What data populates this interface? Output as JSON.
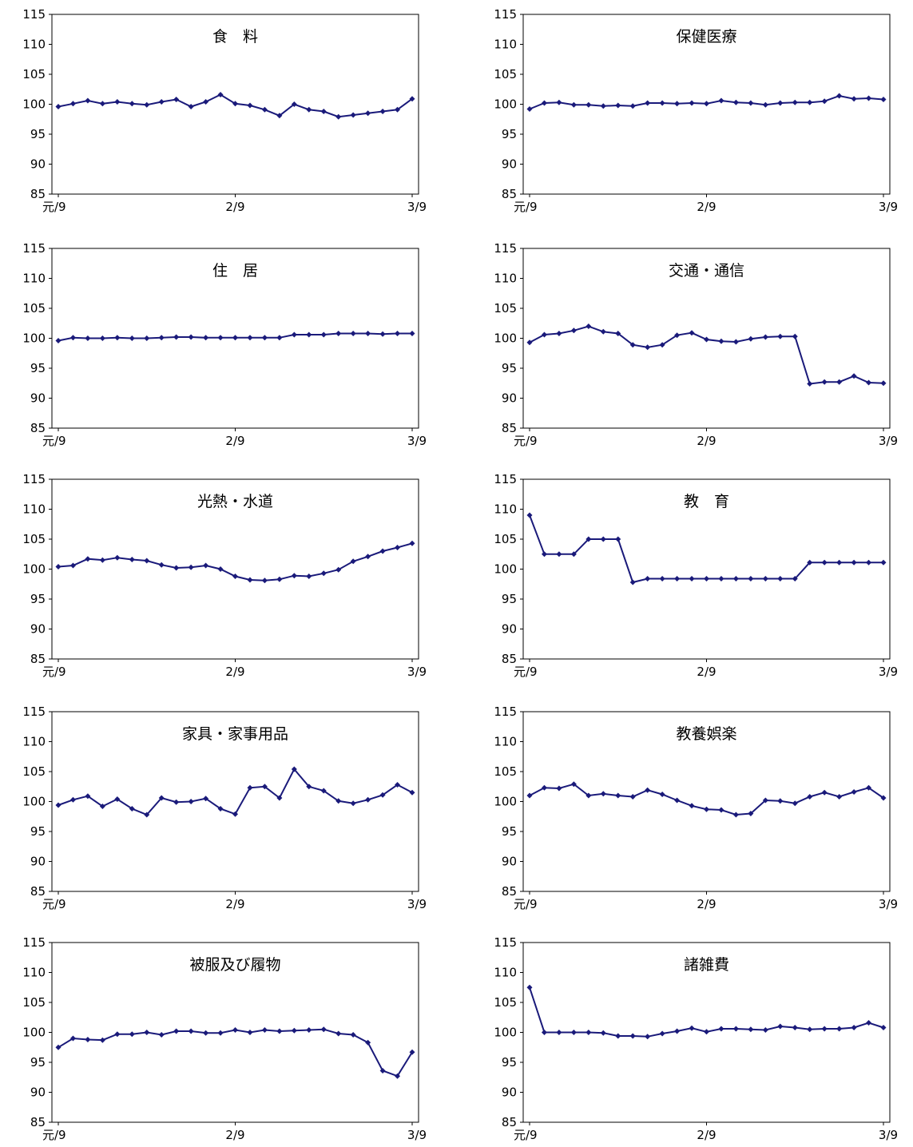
{
  "x_tick_labels": [
    "元/9",
    "2/9",
    "3/9"
  ],
  "y_ticks": [
    85,
    90,
    95,
    100,
    105,
    110,
    115
  ],
  "line_color": "#1a1a7a",
  "chart_data": [
    {
      "type": "line",
      "title": "食　料",
      "ylim": [
        85,
        115
      ],
      "grid": false,
      "values": [
        99.6,
        100.1,
        100.6,
        100.1,
        100.4,
        100.1,
        99.9,
        100.4,
        100.8,
        99.6,
        100.4,
        101.6,
        100.1,
        99.8,
        99.1,
        98.1,
        100.0,
        99.1,
        98.8,
        97.9,
        98.2,
        98.5,
        98.8,
        99.1,
        100.9
      ]
    },
    {
      "type": "line",
      "title": "保健医療",
      "ylim": [
        85,
        115
      ],
      "grid": false,
      "values": [
        99.2,
        100.2,
        100.3,
        99.9,
        99.9,
        99.7,
        99.8,
        99.7,
        100.2,
        100.2,
        100.1,
        100.2,
        100.1,
        100.6,
        100.3,
        100.2,
        99.9,
        100.2,
        100.3,
        100.3,
        100.5,
        101.4,
        100.9,
        101.0,
        100.8
      ]
    },
    {
      "type": "line",
      "title": "住　居",
      "ylim": [
        85,
        115
      ],
      "grid": false,
      "values": [
        99.6,
        100.1,
        100.0,
        100.0,
        100.1,
        100.0,
        100.0,
        100.1,
        100.2,
        100.2,
        100.1,
        100.1,
        100.1,
        100.1,
        100.1,
        100.1,
        100.6,
        100.6,
        100.6,
        100.8,
        100.8,
        100.8,
        100.7,
        100.8,
        100.8
      ]
    },
    {
      "type": "line",
      "title": "交通・通信",
      "ylim": [
        85,
        115
      ],
      "grid": false,
      "values": [
        99.3,
        100.6,
        100.8,
        101.3,
        102.0,
        101.1,
        100.8,
        98.9,
        98.5,
        98.9,
        100.5,
        100.9,
        99.8,
        99.5,
        99.4,
        99.9,
        100.2,
        100.3,
        100.3,
        92.4,
        92.7,
        92.7,
        93.7,
        92.6,
        92.5
      ]
    },
    {
      "type": "line",
      "title": "光熱・水道",
      "ylim": [
        85,
        115
      ],
      "grid": false,
      "values": [
        100.4,
        100.6,
        101.7,
        101.5,
        101.9,
        101.6,
        101.4,
        100.7,
        100.2,
        100.3,
        100.6,
        100.0,
        98.8,
        98.2,
        98.1,
        98.3,
        98.9,
        98.8,
        99.3,
        99.9,
        101.3,
        102.1,
        103.0,
        103.6,
        104.3
      ]
    },
    {
      "type": "line",
      "title": "教　育",
      "ylim": [
        85,
        115
      ],
      "grid": false,
      "values": [
        109.0,
        102.5,
        102.5,
        102.5,
        105.0,
        105.0,
        105.0,
        97.8,
        98.4,
        98.4,
        98.4,
        98.4,
        98.4,
        98.4,
        98.4,
        98.4,
        98.4,
        98.4,
        98.4,
        101.1,
        101.1,
        101.1,
        101.1,
        101.1,
        101.1
      ]
    },
    {
      "type": "line",
      "title": "家具・家事用品",
      "ylim": [
        85,
        115
      ],
      "grid": false,
      "values": [
        99.4,
        100.3,
        100.9,
        99.2,
        100.4,
        98.8,
        97.8,
        100.6,
        99.9,
        100.0,
        100.5,
        98.8,
        97.9,
        102.3,
        102.5,
        100.6,
        105.4,
        102.5,
        101.8,
        100.1,
        99.7,
        100.3,
        101.1,
        102.8,
        101.5
      ]
    },
    {
      "type": "line",
      "title": "教養娯楽",
      "ylim": [
        85,
        115
      ],
      "grid": false,
      "values": [
        101.0,
        102.3,
        102.2,
        102.9,
        101.0,
        101.3,
        101.0,
        100.8,
        101.9,
        101.2,
        100.2,
        99.3,
        98.7,
        98.6,
        97.8,
        98.0,
        100.2,
        100.1,
        99.7,
        100.8,
        101.5,
        100.8,
        101.6,
        102.3,
        100.6
      ]
    },
    {
      "type": "line",
      "title": "被服及び履物",
      "ylim": [
        85,
        115
      ],
      "grid": false,
      "values": [
        97.5,
        99.0,
        98.8,
        98.7,
        99.7,
        99.7,
        100.0,
        99.6,
        100.2,
        100.2,
        99.9,
        99.9,
        100.4,
        100.0,
        100.4,
        100.2,
        100.3,
        100.4,
        100.5,
        99.8,
        99.6,
        98.3,
        93.6,
        92.7,
        96.7
      ]
    },
    {
      "type": "line",
      "title": "諸雑費",
      "ylim": [
        85,
        115
      ],
      "grid": false,
      "values": [
        107.5,
        100.0,
        100.0,
        100.0,
        100.0,
        99.9,
        99.4,
        99.4,
        99.3,
        99.8,
        100.2,
        100.7,
        100.1,
        100.6,
        100.6,
        100.5,
        100.4,
        101.0,
        100.8,
        100.5,
        100.6,
        100.6,
        100.8,
        101.6,
        100.8
      ]
    }
  ]
}
